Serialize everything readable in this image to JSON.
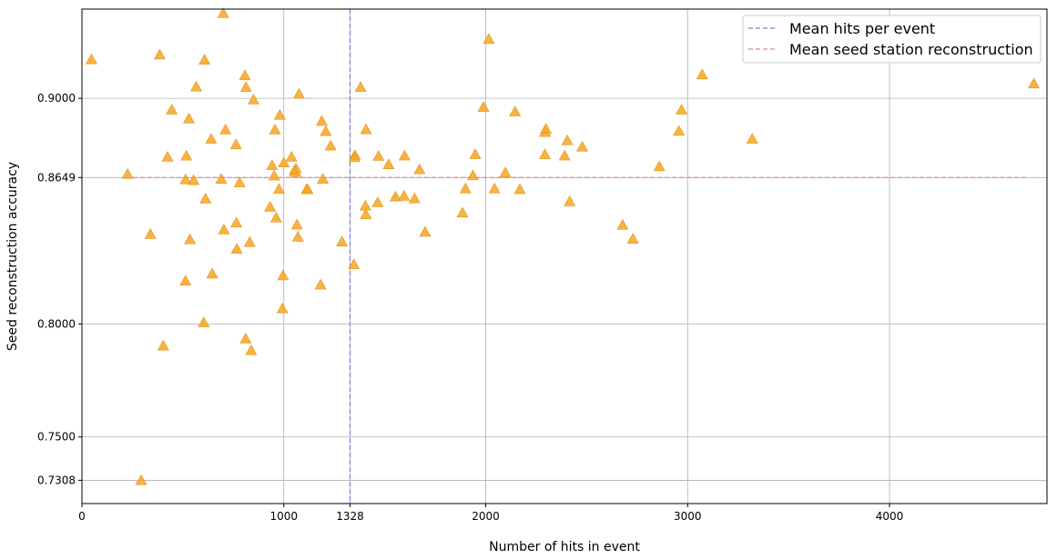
{
  "chart_data": {
    "type": "scatter",
    "title": "",
    "xlabel": "Number of hits in event",
    "ylabel": "Seed reconstruction accuracy",
    "xlim": [
      0,
      4780
    ],
    "ylim": [
      0.7205,
      0.9395
    ],
    "x_ticks": [
      0,
      1000,
      1328,
      2000,
      3000,
      4000
    ],
    "y_ticks": [
      0.7308,
      0.75,
      0.8,
      0.8649,
      0.9
    ],
    "grid": true,
    "legend_position": "top-right",
    "marker": "triangle",
    "marker_color": "#F5A623",
    "reference_lines": [
      {
        "name": "Mean hits per event",
        "orientation": "vertical",
        "value": 1328,
        "color": "#7B7BE8",
        "style": "dashed"
      },
      {
        "name": "Mean seed station reconstruction",
        "orientation": "horizontal",
        "value": 0.8649,
        "color": "#F08080",
        "style": "dashed"
      }
    ],
    "points": [
      [
        47,
        0.9172
      ],
      [
        226,
        0.8664
      ],
      [
        293,
        0.7308
      ],
      [
        339,
        0.8398
      ],
      [
        385,
        0.9193
      ],
      [
        403,
        0.7904
      ],
      [
        424,
        0.874
      ],
      [
        445,
        0.8949
      ],
      [
        513,
        0.864
      ],
      [
        517,
        0.8745
      ],
      [
        530,
        0.891
      ],
      [
        535,
        0.8375
      ],
      [
        553,
        0.8637
      ],
      [
        566,
        0.9051
      ],
      [
        603,
        0.8007
      ],
      [
        607,
        0.917
      ],
      [
        612,
        0.8555
      ],
      [
        640,
        0.8819
      ],
      [
        645,
        0.8223
      ],
      [
        513,
        0.8191
      ],
      [
        690,
        0.8642
      ],
      [
        700,
        0.9377
      ],
      [
        703,
        0.8418
      ],
      [
        711,
        0.8861
      ],
      [
        763,
        0.8795
      ],
      [
        765,
        0.8449
      ],
      [
        767,
        0.8333
      ],
      [
        781,
        0.8627
      ],
      [
        807,
        0.9101
      ],
      [
        813,
        0.9049
      ],
      [
        811,
        0.7935
      ],
      [
        831,
        0.8363
      ],
      [
        838,
        0.7883
      ],
      [
        850,
        0.8994
      ],
      [
        932,
        0.8519
      ],
      [
        942,
        0.8703
      ],
      [
        952,
        0.8657
      ],
      [
        956,
        0.8861
      ],
      [
        962,
        0.8471
      ],
      [
        976,
        0.8598
      ],
      [
        980,
        0.8926
      ],
      [
        993,
        0.8069
      ],
      [
        996,
        0.8215
      ],
      [
        1000,
        0.8715
      ],
      [
        1038,
        0.874
      ],
      [
        1053,
        0.868
      ],
      [
        1058,
        0.8673
      ],
      [
        1060,
        0.8689
      ],
      [
        1065,
        0.844
      ],
      [
        1070,
        0.8386
      ],
      [
        1075,
        0.9019
      ],
      [
        1113,
        0.8597
      ],
      [
        1118,
        0.8597
      ],
      [
        1182,
        0.8174
      ],
      [
        1188,
        0.8899
      ],
      [
        1193,
        0.8642
      ],
      [
        1208,
        0.8854
      ],
      [
        1232,
        0.879
      ],
      [
        1288,
        0.8365
      ],
      [
        1347,
        0.8264
      ],
      [
        1352,
        0.8748
      ],
      [
        1350,
        0.8738
      ],
      [
        1380,
        0.9049
      ],
      [
        1407,
        0.8862
      ],
      [
        1404,
        0.8524
      ],
      [
        1406,
        0.8486
      ],
      [
        1465,
        0.8539
      ],
      [
        1469,
        0.8744
      ],
      [
        1519,
        0.8707
      ],
      [
        1553,
        0.8564
      ],
      [
        1595,
        0.8567
      ],
      [
        1598,
        0.8746
      ],
      [
        1647,
        0.8556
      ],
      [
        1672,
        0.8685
      ],
      [
        1700,
        0.8408
      ],
      [
        1885,
        0.8493
      ],
      [
        1900,
        0.86
      ],
      [
        1937,
        0.8658
      ],
      [
        1948,
        0.8752
      ],
      [
        1989,
        0.8961
      ],
      [
        2015,
        0.9262
      ],
      [
        2044,
        0.86
      ],
      [
        2097,
        0.8671
      ],
      [
        2145,
        0.8941
      ],
      [
        2169,
        0.8597
      ],
      [
        2293,
        0.8752
      ],
      [
        2294,
        0.885
      ],
      [
        2298,
        0.8864
      ],
      [
        2391,
        0.8746
      ],
      [
        2404,
        0.8813
      ],
      [
        2416,
        0.8543
      ],
      [
        2478,
        0.8785
      ],
      [
        2678,
        0.8439
      ],
      [
        2729,
        0.8377
      ],
      [
        2860,
        0.8698
      ],
      [
        2957,
        0.8855
      ],
      [
        2970,
        0.8949
      ],
      [
        3072,
        0.9105
      ],
      [
        3320,
        0.882
      ],
      [
        4715,
        0.9065
      ]
    ],
    "legend": [
      "Mean hits per event",
      "Mean seed station reconstruction"
    ]
  }
}
